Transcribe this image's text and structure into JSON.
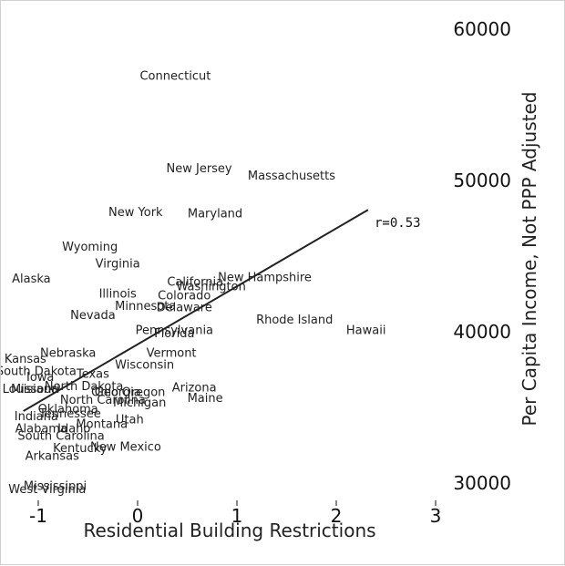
{
  "chart_data": {
    "type": "scatter",
    "title": "",
    "xlabel": "Residential Building Restrictions",
    "ylabel": "Per Capita Income, Not PPP Adjusted",
    "xlim": [
      -1.1,
      3.0
    ],
    "ylim": [
      29000,
      61500
    ],
    "xticks": [
      -1,
      0,
      1,
      2,
      3
    ],
    "yticks": [
      30000,
      40000,
      50000,
      60000
    ],
    "x_tick_labels": [
      "-1",
      "0",
      "1",
      "2",
      "3"
    ],
    "y_tick_labels": [
      "30000",
      "40000",
      "50000",
      "60000"
    ],
    "y_axis_side": "right",
    "grid": false,
    "annotation": "r=0.53",
    "fit_line": {
      "x": [
        -1.15,
        2.32
      ],
      "y": [
        34700,
        48000
      ]
    },
    "points": [
      {
        "label": "Connecticut",
        "x": 0.38,
        "y": 56800
      },
      {
        "label": "New Jersey",
        "x": 0.62,
        "y": 50700
      },
      {
        "label": "Massachusetts",
        "x": 1.55,
        "y": 50200
      },
      {
        "label": "New York",
        "x": -0.02,
        "y": 47800
      },
      {
        "label": "Maryland",
        "x": 0.78,
        "y": 47700
      },
      {
        "label": "Wyoming",
        "x": -0.48,
        "y": 45500
      },
      {
        "label": "Virginia",
        "x": -0.2,
        "y": 44400
      },
      {
        "label": "Alaska",
        "x": -1.07,
        "y": 43400
      },
      {
        "label": "New Hampshire",
        "x": 1.28,
        "y": 43500
      },
      {
        "label": "California",
        "x": 0.58,
        "y": 43200
      },
      {
        "label": "Washington",
        "x": 0.74,
        "y": 42900
      },
      {
        "label": "Illinois",
        "x": -0.2,
        "y": 42400
      },
      {
        "label": "Colorado",
        "x": 0.47,
        "y": 42300
      },
      {
        "label": "Minnesota",
        "x": 0.08,
        "y": 41600
      },
      {
        "label": "Delaware",
        "x": 0.47,
        "y": 41500
      },
      {
        "label": "Nevada",
        "x": -0.45,
        "y": 41000
      },
      {
        "label": "Rhode Island",
        "x": 1.58,
        "y": 40700
      },
      {
        "label": "Pennsylvania",
        "x": 0.37,
        "y": 40000
      },
      {
        "label": "Florida",
        "x": 0.37,
        "y": 39800
      },
      {
        "label": "Hawaii",
        "x": 2.3,
        "y": 40000
      },
      {
        "label": "Nebraska",
        "x": -0.7,
        "y": 38500
      },
      {
        "label": "Vermont",
        "x": 0.34,
        "y": 38500
      },
      {
        "label": "Kansas",
        "x": -1.13,
        "y": 38100
      },
      {
        "label": "Wisconsin",
        "x": 0.07,
        "y": 37700
      },
      {
        "label": "South Dakota",
        "x": -1.02,
        "y": 37300
      },
      {
        "label": "Texas",
        "x": -0.45,
        "y": 37100
      },
      {
        "label": "Iowa",
        "x": -0.98,
        "y": 36900
      },
      {
        "label": "North Dakota",
        "x": -0.54,
        "y": 36300
      },
      {
        "label": "Louisiana",
        "x": -1.08,
        "y": 36100
      },
      {
        "label": "Missouri",
        "x": -1.03,
        "y": 36100
      },
      {
        "label": "Ohio",
        "x": -0.33,
        "y": 35900
      },
      {
        "label": "Georgia",
        "x": -0.2,
        "y": 35900
      },
      {
        "label": "Oregon",
        "x": 0.06,
        "y": 35900
      },
      {
        "label": "Arizona",
        "x": 0.57,
        "y": 36200
      },
      {
        "label": "Maine",
        "x": 0.68,
        "y": 35500
      },
      {
        "label": "North Carolina",
        "x": -0.35,
        "y": 35400
      },
      {
        "label": "Michigan",
        "x": 0.02,
        "y": 35200
      },
      {
        "label": "Oklahoma",
        "x": -0.7,
        "y": 34800
      },
      {
        "label": "Tennessee",
        "x": -0.68,
        "y": 34500
      },
      {
        "label": "Indiana",
        "x": -1.02,
        "y": 34300
      },
      {
        "label": "Utah",
        "x": -0.08,
        "y": 34100
      },
      {
        "label": "Montana",
        "x": -0.36,
        "y": 33800
      },
      {
        "label": "Alabama",
        "x": -0.97,
        "y": 33500
      },
      {
        "label": "Idaho",
        "x": -0.64,
        "y": 33500
      },
      {
        "label": "South Carolina",
        "x": -0.77,
        "y": 33000
      },
      {
        "label": "New Mexico",
        "x": -0.12,
        "y": 32300
      },
      {
        "label": "Kentucky",
        "x": -0.58,
        "y": 32200
      },
      {
        "label": "Arkansas",
        "x": -0.86,
        "y": 31700
      },
      {
        "label": "Mississippi",
        "x": -0.83,
        "y": 29700
      },
      {
        "label": "West Virginia",
        "x": -0.91,
        "y": 29500
      }
    ]
  }
}
